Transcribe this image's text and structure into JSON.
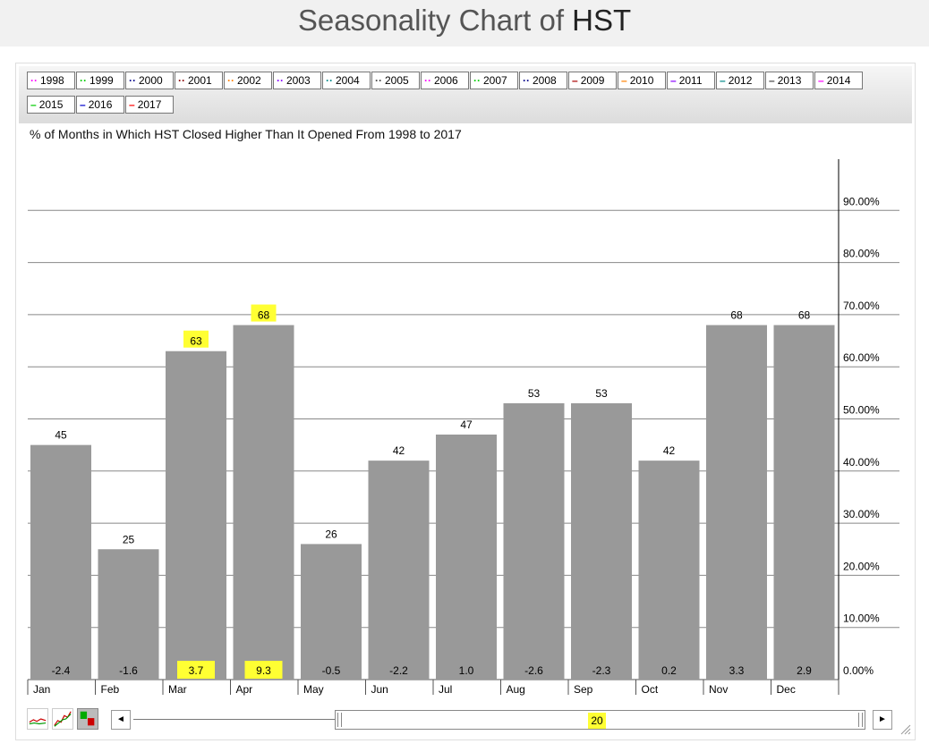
{
  "page": {
    "title_prefix": "Seasonality Chart of",
    "title_symbol": "HST"
  },
  "legend": [
    {
      "label": "1998",
      "color": "#ff00ff",
      "style": "dotted"
    },
    {
      "label": "1999",
      "color": "#00cc00",
      "style": "dotted"
    },
    {
      "label": "2000",
      "color": "#000088",
      "style": "dotted"
    },
    {
      "label": "2001",
      "color": "#880000",
      "style": "dotted"
    },
    {
      "label": "2002",
      "color": "#ff8000",
      "style": "dotted"
    },
    {
      "label": "2003",
      "color": "#8800ff",
      "style": "dotted"
    },
    {
      "label": "2004",
      "color": "#008888",
      "style": "dotted"
    },
    {
      "label": "2005",
      "color": "#444444",
      "style": "dotted"
    },
    {
      "label": "2006",
      "color": "#ff00ff",
      "style": "dotted"
    },
    {
      "label": "2007",
      "color": "#00cc00",
      "style": "dotted"
    },
    {
      "label": "2008",
      "color": "#000088",
      "style": "dotted"
    },
    {
      "label": "2009",
      "color": "#aa0000",
      "style": "solid"
    },
    {
      "label": "2010",
      "color": "#ff8000",
      "style": "solid"
    },
    {
      "label": "2011",
      "color": "#8800ff",
      "style": "solid"
    },
    {
      "label": "2012",
      "color": "#008888",
      "style": "solid"
    },
    {
      "label": "2013",
      "color": "#444444",
      "style": "solid"
    },
    {
      "label": "2014",
      "color": "#ff00ff",
      "style": "solid"
    },
    {
      "label": "2015",
      "color": "#00cc00",
      "style": "solid"
    },
    {
      "label": "2016",
      "color": "#0000cc",
      "style": "solid"
    },
    {
      "label": "2017",
      "color": "#ff0000",
      "style": "solid"
    }
  ],
  "chart_data": {
    "type": "bar",
    "title": "% of Months in Which HST Closed Higher Than It Opened From 1998 to 2017",
    "categories": [
      "Jan",
      "Feb",
      "Mar",
      "Apr",
      "May",
      "Jun",
      "Jul",
      "Aug",
      "Sep",
      "Oct",
      "Nov",
      "Dec"
    ],
    "values": [
      45,
      25,
      63,
      68,
      26,
      42,
      47,
      53,
      53,
      42,
      68,
      68
    ],
    "value_labels": [
      "45",
      "25",
      "63",
      "68",
      "26",
      "42",
      "47",
      "53",
      "53",
      "42",
      "68",
      "68"
    ],
    "avg_returns": [
      "-2.4",
      "-1.6",
      "3.7",
      "9.3",
      "-0.5",
      "-2.2",
      "1.0",
      "-2.6",
      "-2.3",
      "0.2",
      "3.3",
      "2.9"
    ],
    "highlighted_categories": [
      "Mar",
      "Apr"
    ],
    "y_ticks": [
      "0.00%",
      "10.00%",
      "20.00%",
      "30.00%",
      "40.00%",
      "50.00%",
      "60.00%",
      "70.00%",
      "80.00%",
      "90.00%"
    ],
    "ylim": [
      0,
      100
    ],
    "y_axis_position": "right",
    "grid": true,
    "bar_color": "#999999",
    "highlight_color": "#ffff33"
  },
  "scrollbar": {
    "value": "20",
    "left_arrow": "◄",
    "right_arrow": "►"
  }
}
